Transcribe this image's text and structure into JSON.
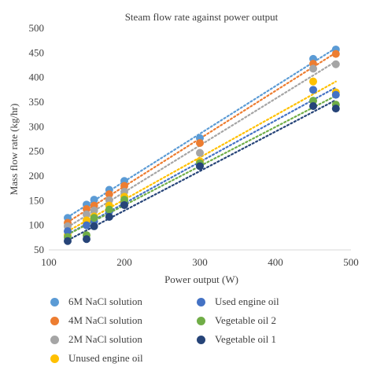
{
  "chart_data": {
    "type": "scatter",
    "title": "Steam flow rate against power output",
    "xlabel": "Power output (W)",
    "ylabel": "Mass flow rate (kg/hr)",
    "xlim": [
      100,
      500
    ],
    "ylim": [
      50,
      500
    ],
    "xticks": [
      100,
      200,
      300,
      400,
      500
    ],
    "yticks": [
      50,
      100,
      150,
      200,
      250,
      300,
      350,
      400,
      450,
      500
    ],
    "grid": false,
    "trendlines": "linear, dotted",
    "legend_position": "bottom",
    "x": [
      125,
      150,
      160,
      180,
      200,
      300,
      450,
      480
    ],
    "series": [
      {
        "name": "6M NaCl solution",
        "color": "#5b9bd5",
        "values": [
          115,
          142,
          152,
          172,
          190,
          277,
          438,
          457
        ]
      },
      {
        "name": "4M NaCl solution",
        "color": "#ed7d31",
        "values": [
          105,
          133,
          140,
          163,
          180,
          267,
          428,
          448
        ]
      },
      {
        "name": "2M NaCl solution",
        "color": "#a5a5a5",
        "values": [
          98,
          122,
          130,
          151,
          168,
          247,
          418,
          427
        ]
      },
      {
        "name": "Unused engine oil",
        "color": "#ffc000",
        "values": [
          80,
          110,
          118,
          140,
          158,
          230,
          392,
          370
        ]
      },
      {
        "name": "Used engine oil",
        "color": "#4472c4",
        "values": [
          88,
          100,
          108,
          128,
          145,
          222,
          375,
          365
        ]
      },
      {
        "name": "Vegetable oil 2",
        "color": "#70ad47",
        "values": [
          76,
          80,
          115,
          132,
          152,
          226,
          353,
          345
        ]
      },
      {
        "name": "Vegetable oil 1",
        "color": "#264478",
        "values": [
          68,
          72,
          98,
          117,
          141,
          220,
          342,
          337
        ]
      }
    ]
  }
}
